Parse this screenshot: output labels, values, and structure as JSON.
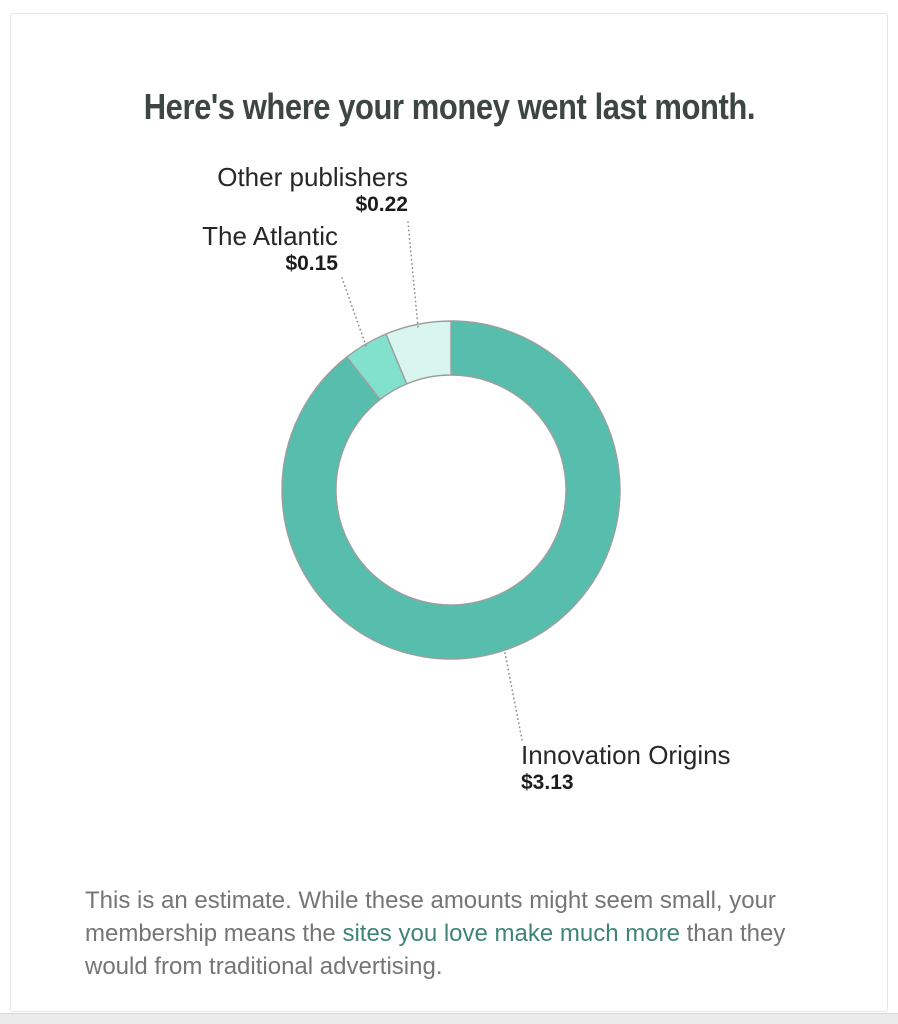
{
  "page": {
    "background": "#ffffff",
    "card_border_color": "#e3e6e5",
    "bottom_strip_color": "#ebebeb"
  },
  "chart_data": {
    "type": "pie",
    "subtype": "donut",
    "title": "Here's where your money went last month.",
    "unit": "USD",
    "total": 3.5,
    "start_angle_deg": 0,
    "clockwise": true,
    "stroke_color": "#9e9e9e",
    "leader_line_color": "#8f8f8f",
    "slices": [
      {
        "label": "Innovation Origins",
        "value": 3.13,
        "display_value": "$3.13",
        "color": "#57bead"
      },
      {
        "label": "The Atlantic",
        "value": 0.15,
        "display_value": "$0.15",
        "color": "#82e1cd"
      },
      {
        "label": "Other publishers",
        "value": 0.22,
        "display_value": "$0.22",
        "color": "#d9f5f0"
      }
    ]
  },
  "footer": {
    "text_before_link": "This is an estimate. While these amounts might seem small, your\nmembership means the ",
    "link_text": "sites you love make much more",
    "text_after_link": " than they\nwould from traditional advertising.",
    "link_color": "#3e8577"
  },
  "colors": {
    "title": "#3e4643",
    "label_text": "#272727",
    "value_text": "#1c1c1c",
    "paragraph_text": "#757575"
  }
}
